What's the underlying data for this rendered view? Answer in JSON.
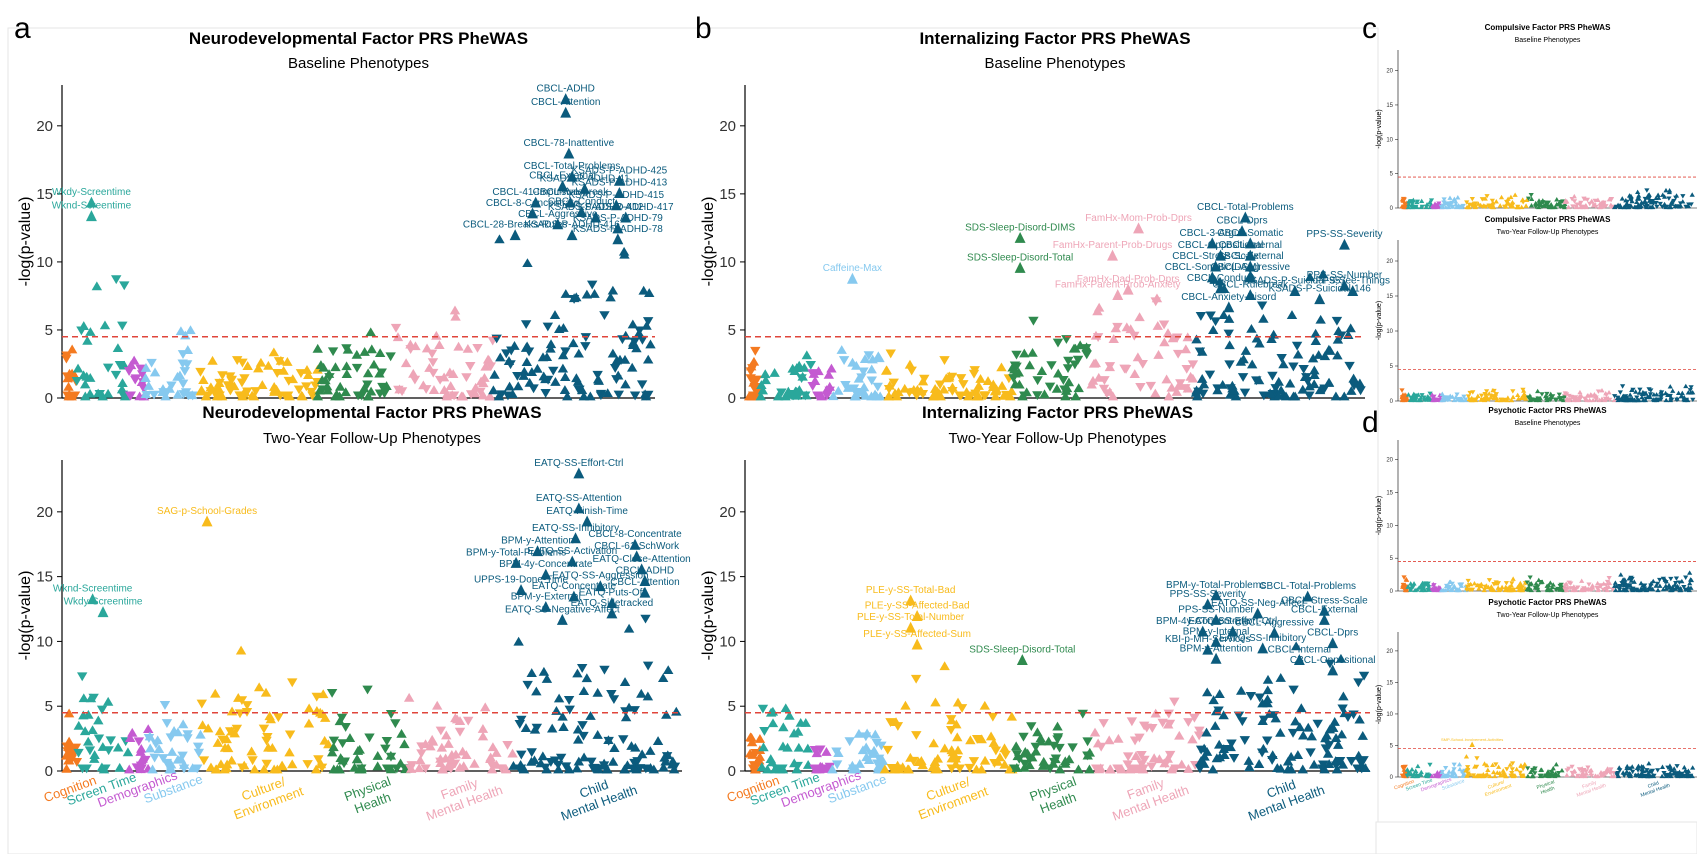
{
  "panel_labels": [
    "a",
    "b",
    "c",
    "d"
  ],
  "category_colors": {
    "Cognition": "#f47a20",
    "Screen Time": "#2aa79b",
    "Demographics": "#c45ad1",
    "Substance": "#86c9ef",
    "Culture/Environment": "#f8bb1c",
    "Physical Health": "#2f8a4e",
    "Family Mental Health": "#eea5b7",
    "Child Mental Health": "#0b5b7d"
  },
  "threshold_color": "#e0453b",
  "chart_data": [
    {
      "id": "a-top",
      "type": "scatter",
      "marker": "triangle",
      "title": "Neurodevelopmental Factor PRS PheWAS",
      "subtitle": "Baseline Phenotypes",
      "ylabel": "-log(p-value)",
      "ylim": [
        0,
        23
      ],
      "yticks": [
        0,
        5,
        10,
        15,
        20
      ],
      "threshold": 4.5,
      "grid": false,
      "labels": [
        {
          "text": "CBCL-ADHD",
          "cat": 7,
          "pos": 0.46,
          "y": 22.0
        },
        {
          "text": "CBCL-Attention",
          "cat": 7,
          "pos": 0.46,
          "y": 21.0
        },
        {
          "text": "CBCL-78-Inattentive",
          "cat": 7,
          "pos": 0.48,
          "y": 18.0
        },
        {
          "text": "CBCL-Total-Problems",
          "cat": 7,
          "pos": 0.5,
          "y": 16.3
        },
        {
          "text": "CBCL-External",
          "cat": 7,
          "pos": 0.44,
          "y": 15.6
        },
        {
          "text": "KSADS-P-ADHD-41",
          "cat": 7,
          "pos": 0.58,
          "y": 15.4
        },
        {
          "text": "KSADS-P-ADHD-425",
          "cat": 7,
          "pos": 0.8,
          "y": 16.0
        },
        {
          "text": "KSADS-P-ADHD-413",
          "cat": 7,
          "pos": 0.8,
          "y": 15.1
        },
        {
          "text": "CBCL-41-Impulsive",
          "cat": 7,
          "pos": 0.27,
          "y": 14.4
        },
        {
          "text": "CBCL-Rulebreak",
          "cat": 7,
          "pos": 0.49,
          "y": 14.4
        },
        {
          "text": "KSADS-P-ADHD-415",
          "cat": 7,
          "pos": 0.78,
          "y": 14.2
        },
        {
          "text": "CBCL-8-Concentrate",
          "cat": 7,
          "pos": 0.25,
          "y": 13.6
        },
        {
          "text": "CBCL-Conduct",
          "cat": 7,
          "pos": 0.56,
          "y": 13.7
        },
        {
          "text": "KSADS-P-ADHD-412",
          "cat": 7,
          "pos": 0.65,
          "y": 13.3
        },
        {
          "text": "KSADS-P-ADHD-417",
          "cat": 7,
          "pos": 0.84,
          "y": 13.3
        },
        {
          "text": "CBCL-Aggressive",
          "cat": 7,
          "pos": 0.41,
          "y": 12.8
        },
        {
          "text": "KSADS-P-ADHD-79",
          "cat": 7,
          "pos": 0.79,
          "y": 12.5
        },
        {
          "text": "CBCL-28-Breaks-Rules",
          "cat": 7,
          "pos": 0.14,
          "y": 12.0
        },
        {
          "text": "KSADS-P-ADHD-416",
          "cat": 7,
          "pos": 0.5,
          "y": 12.0
        },
        {
          "text": "KSADS-P-ADHD-78",
          "cat": 7,
          "pos": 0.79,
          "y": 11.7
        },
        {
          "text": "Wkdy-Screentime",
          "cat": 1,
          "pos": 0.3,
          "y": 14.4
        },
        {
          "text": "Wknd-Screentime",
          "cat": 1,
          "pos": 0.3,
          "y": 13.4
        }
      ]
    },
    {
      "id": "a-bottom",
      "type": "scatter",
      "marker": "triangle",
      "title": "Neurodevelopmental Factor PRS PheWAS",
      "subtitle": "Two-Year Follow-Up Phenotypes",
      "ylabel": "-log(p-value)",
      "ylim": [
        0,
        24
      ],
      "yticks": [
        0,
        5,
        10,
        15,
        20
      ],
      "threshold": 4.5,
      "grid": false,
      "labels": [
        {
          "text": "EATQ-SS-Effort-Ctrl",
          "cat": 7,
          "pos": 0.4,
          "y": 23.0
        },
        {
          "text": "EATQ-SS-Attention",
          "cat": 7,
          "pos": 0.4,
          "y": 20.3
        },
        {
          "text": "EATQ-Finish-Time",
          "cat": 7,
          "pos": 0.45,
          "y": 19.3
        },
        {
          "text": "SAG-p-School-Grades",
          "cat": 4,
          "pos": 0.05,
          "y": 19.3
        },
        {
          "text": "EATQ-SS-Inhibitory",
          "cat": 7,
          "pos": 0.38,
          "y": 18.0
        },
        {
          "text": "CBCL-8-Concentrate",
          "cat": 7,
          "pos": 0.74,
          "y": 17.5
        },
        {
          "text": "BPM-y-Attention",
          "cat": 7,
          "pos": 0.15,
          "y": 17.0
        },
        {
          "text": "CBCL-61-SchWork",
          "cat": 7,
          "pos": 0.75,
          "y": 16.6
        },
        {
          "text": "BPM-y-Total-Problems",
          "cat": 7,
          "pos": 0.02,
          "y": 16.1
        },
        {
          "text": "EATQ-SS-Activation",
          "cat": 7,
          "pos": 0.36,
          "y": 16.2
        },
        {
          "text": "EATQ-Close-Attention",
          "cat": 7,
          "pos": 0.78,
          "y": 15.6
        },
        {
          "text": "BPM-4y-Concentrate",
          "cat": 7,
          "pos": 0.2,
          "y": 15.2
        },
        {
          "text": "EATQ-SS-Aggression",
          "cat": 7,
          "pos": 0.53,
          "y": 14.3
        },
        {
          "text": "CBCL-ADHD",
          "cat": 7,
          "pos": 0.8,
          "y": 14.7
        },
        {
          "text": "UPPS-19-Done-Time",
          "cat": 7,
          "pos": 0.05,
          "y": 14.0
        },
        {
          "text": "CBCL-Attention",
          "cat": 7,
          "pos": 0.8,
          "y": 13.8
        },
        {
          "text": "EATQ-Concentrate",
          "cat": 7,
          "pos": 0.37,
          "y": 13.5
        },
        {
          "text": "EATQ-Puts-Off",
          "cat": 7,
          "pos": 0.6,
          "y": 13.0
        },
        {
          "text": "BPM-y-External",
          "cat": 7,
          "pos": 0.2,
          "y": 12.7
        },
        {
          "text": "EATQ-Sidetracked",
          "cat": 7,
          "pos": 0.6,
          "y": 12.2
        },
        {
          "text": "EATQ-SS-Negative-Affect",
          "cat": 7,
          "pos": 0.3,
          "y": 11.7
        },
        {
          "text": "Wknd-Screentime",
          "cat": 1,
          "pos": 0.3,
          "y": 13.3
        },
        {
          "text": "Wkdy-Screentime",
          "cat": 1,
          "pos": 0.5,
          "y": 12.3
        }
      ]
    },
    {
      "id": "b-top",
      "type": "scatter",
      "marker": "triangle",
      "title": "Internalizing Factor PRS PheWAS",
      "subtitle": "Baseline Phenotypes",
      "ylabel": "-log(p-value)",
      "ylim": [
        0,
        23
      ],
      "yticks": [
        0,
        5,
        10,
        15,
        20
      ],
      "threshold": 4.5,
      "grid": false,
      "labels": [
        {
          "text": "CBCL-Total-Problems",
          "cat": 7,
          "pos": 0.3,
          "y": 13.3
        },
        {
          "text": "CBCL-Dprs",
          "cat": 7,
          "pos": 0.28,
          "y": 12.3
        },
        {
          "text": "FamHx-Mom-Prob-Dprs",
          "cat": 6,
          "pos": 0.45,
          "y": 12.5
        },
        {
          "text": "SDS-Sleep-Disord-DIMS",
          "cat": 5,
          "pos": 0.1,
          "y": 11.8
        },
        {
          "text": "CBCL-3-Argue",
          "cat": 7,
          "pos": 0.1,
          "y": 11.4
        },
        {
          "text": "CBCL-Somatic",
          "cat": 7,
          "pos": 0.33,
          "y": 11.4
        },
        {
          "text": "CBCL-Oppositional",
          "cat": 7,
          "pos": 0.15,
          "y": 10.5
        },
        {
          "text": "CBCL-Internal",
          "cat": 7,
          "pos": 0.33,
          "y": 10.5
        },
        {
          "text": "FamHx-Parent-Prob-Drugs",
          "cat": 6,
          "pos": 0.2,
          "y": 10.5
        },
        {
          "text": "CBCL-Stress-Scale",
          "cat": 7,
          "pos": 0.12,
          "y": 9.7
        },
        {
          "text": "CBCL-External",
          "cat": 7,
          "pos": 0.33,
          "y": 9.7
        },
        {
          "text": "SDS-Sleep-Disord-Total",
          "cat": 5,
          "pos": 0.1,
          "y": 9.6
        },
        {
          "text": "CBCL-Somatic(DSM)",
          "cat": 7,
          "pos": 0.1,
          "y": 8.9
        },
        {
          "text": "CBCL-Aggressive",
          "cat": 7,
          "pos": 0.33,
          "y": 8.9
        },
        {
          "text": "PPS-SS-Severity",
          "cat": 7,
          "pos": 0.9,
          "y": 11.3
        },
        {
          "text": "Caffeine-Max",
          "cat": 3,
          "pos": 0.4,
          "y": 8.8
        },
        {
          "text": "FamHx-Dad-Prob-Dprs",
          "cat": 6,
          "pos": 0.35,
          "y": 8.0
        },
        {
          "text": "CBCL-Conduct",
          "cat": 7,
          "pos": 0.15,
          "y": 8.1
        },
        {
          "text": "CBCL-Rulebreak",
          "cat": 7,
          "pos": 0.33,
          "y": 7.6
        },
        {
          "text": "FamHx-Parent-Prob-Anxiety",
          "cat": 6,
          "pos": 0.25,
          "y": 7.6
        },
        {
          "text": "PPS-SS-Number",
          "cat": 7,
          "pos": 0.9,
          "y": 8.3
        },
        {
          "text": "KSADS-P-Suicidal-957",
          "cat": 7,
          "pos": 0.6,
          "y": 7.9
        },
        {
          "text": "PPS-See-Things",
          "cat": 7,
          "pos": 0.95,
          "y": 7.9
        },
        {
          "text": "KSADS-P-Suicidal-146",
          "cat": 7,
          "pos": 0.75,
          "y": 7.3
        },
        {
          "text": "CBCL-Anxiety-Disord",
          "cat": 7,
          "pos": 0.2,
          "y": 6.7
        }
      ]
    },
    {
      "id": "b-bottom",
      "type": "scatter",
      "marker": "triangle",
      "title": "Internalizing Factor PRS PheWAS",
      "subtitle": "Two-Year Follow-Up Phenotypes",
      "ylabel": "-log(p-value)",
      "ylim": [
        0,
        24
      ],
      "yticks": [
        0,
        5,
        10,
        15,
        20
      ],
      "threshold": 4.5,
      "grid": false,
      "labels": [
        {
          "text": "CBCL-Total-Problems",
          "cat": 7,
          "pos": 0.65,
          "y": 13.5
        },
        {
          "text": "BPM-y-Total-Problems",
          "cat": 7,
          "pos": 0.1,
          "y": 13.6
        },
        {
          "text": "PPS-SS-Severity",
          "cat": 7,
          "pos": 0.05,
          "y": 12.9
        },
        {
          "text": "CBCL-Stress-Scale",
          "cat": 7,
          "pos": 0.75,
          "y": 12.4
        },
        {
          "text": "EATQ-SS-Neg-Affect",
          "cat": 7,
          "pos": 0.35,
          "y": 12.2
        },
        {
          "text": "PLE-y-SS-Total-Bad",
          "cat": 4,
          "pos": 0.2,
          "y": 13.2
        },
        {
          "text": "PLE-y-SS-Affected-Bad",
          "cat": 4,
          "pos": 0.25,
          "y": 12.0
        },
        {
          "text": "PPS-SS-Number",
          "cat": 7,
          "pos": 0.1,
          "y": 11.7
        },
        {
          "text": "CBCL-External",
          "cat": 7,
          "pos": 0.75,
          "y": 11.7
        },
        {
          "text": "PLE-y-SS-Total-Number",
          "cat": 4,
          "pos": 0.2,
          "y": 11.1
        },
        {
          "text": "BPM-4y-Concentrate",
          "cat": 7,
          "pos": 0.02,
          "y": 10.8
        },
        {
          "text": "EATQ-SS-Effort-Ctrl",
          "cat": 7,
          "pos": 0.2,
          "y": 10.8
        },
        {
          "text": "CBCL-Aggressive",
          "cat": 7,
          "pos": 0.45,
          "y": 10.7
        },
        {
          "text": "BPM-y-Internal",
          "cat": 7,
          "pos": 0.1,
          "y": 10.0
        },
        {
          "text": "CBCL-Dprs",
          "cat": 7,
          "pos": 0.8,
          "y": 9.9
        },
        {
          "text": "PLE-y-SS-Affected-Sum",
          "cat": 4,
          "pos": 0.25,
          "y": 9.8
        },
        {
          "text": "KBI-p-MH-Services",
          "cat": 7,
          "pos": 0.05,
          "y": 9.4
        },
        {
          "text": "EATQ-SS-Inhibitory",
          "cat": 7,
          "pos": 0.38,
          "y": 9.5
        },
        {
          "text": "BPM-y-Attention",
          "cat": 7,
          "pos": 0.1,
          "y": 8.7
        },
        {
          "text": "CBCL-Internal",
          "cat": 7,
          "pos": 0.6,
          "y": 8.6
        },
        {
          "text": "SDS-Sleep-Disord-Total",
          "cat": 5,
          "pos": 0.1,
          "y": 8.6
        },
        {
          "text": "CBCL-Oppositional",
          "cat": 7,
          "pos": 0.8,
          "y": 7.8
        }
      ]
    },
    {
      "id": "c-top",
      "type": "scatter",
      "marker": "triangle",
      "title": "Compulsive Factor PRS PheWAS",
      "subtitle": "Baseline Phenotypes",
      "ylabel": "-log(p-value)",
      "ylim": [
        0,
        23
      ],
      "yticks": [
        0,
        5,
        10,
        15,
        20
      ],
      "threshold": 4.5,
      "grid": false,
      "labels": []
    },
    {
      "id": "c-bottom",
      "type": "scatter",
      "marker": "triangle",
      "title": "Compulsive Factor PRS PheWAS",
      "subtitle": "Two-Year Follow-Up Phenotypes",
      "ylabel": "-log(p-value)",
      "ylim": [
        0,
        23
      ],
      "yticks": [
        0,
        5,
        10,
        15,
        20
      ],
      "threshold": 4.5,
      "grid": false,
      "labels": []
    },
    {
      "id": "d-top",
      "type": "scatter",
      "marker": "triangle",
      "title": "Psychotic Factor PRS PheWAS",
      "subtitle": "Baseline Phenotypes",
      "ylabel": "-log(p-value)",
      "ylim": [
        0,
        23
      ],
      "yticks": [
        0,
        5,
        10,
        15,
        20
      ],
      "threshold": 4.5,
      "grid": false,
      "labels": []
    },
    {
      "id": "d-bottom",
      "type": "scatter",
      "marker": "triangle",
      "title": "Psychotic Factor PRS PheWAS",
      "subtitle": "Two-Year Follow-Up Phenotypes",
      "ylabel": "-log(p-value)",
      "ylim": [
        0,
        23
      ],
      "yticks": [
        0,
        5,
        10,
        15,
        20
      ],
      "threshold": 4.5,
      "grid": false,
      "labels": [
        {
          "text": "SMP-School-Involvement-Activities",
          "cat": 4,
          "pos": 0.1,
          "y": 5.2
        }
      ]
    }
  ],
  "x_categories": [
    {
      "key": "cognition",
      "lines": [
        "Cognition"
      ]
    },
    {
      "key": "screen-time",
      "lines": [
        "Screen Time"
      ]
    },
    {
      "key": "demographics",
      "lines": [
        "Demographics"
      ]
    },
    {
      "key": "substance",
      "lines": [
        "Substance"
      ]
    },
    {
      "key": "culture-environment",
      "lines": [
        "Culture/",
        "Environment"
      ]
    },
    {
      "key": "physical-health",
      "lines": [
        "Physical",
        "Health"
      ]
    },
    {
      "key": "family-mental-health",
      "lines": [
        "Family",
        "Mental Health"
      ]
    },
    {
      "key": "child-mental-health",
      "lines": [
        "Child",
        "Mental Health"
      ]
    }
  ]
}
